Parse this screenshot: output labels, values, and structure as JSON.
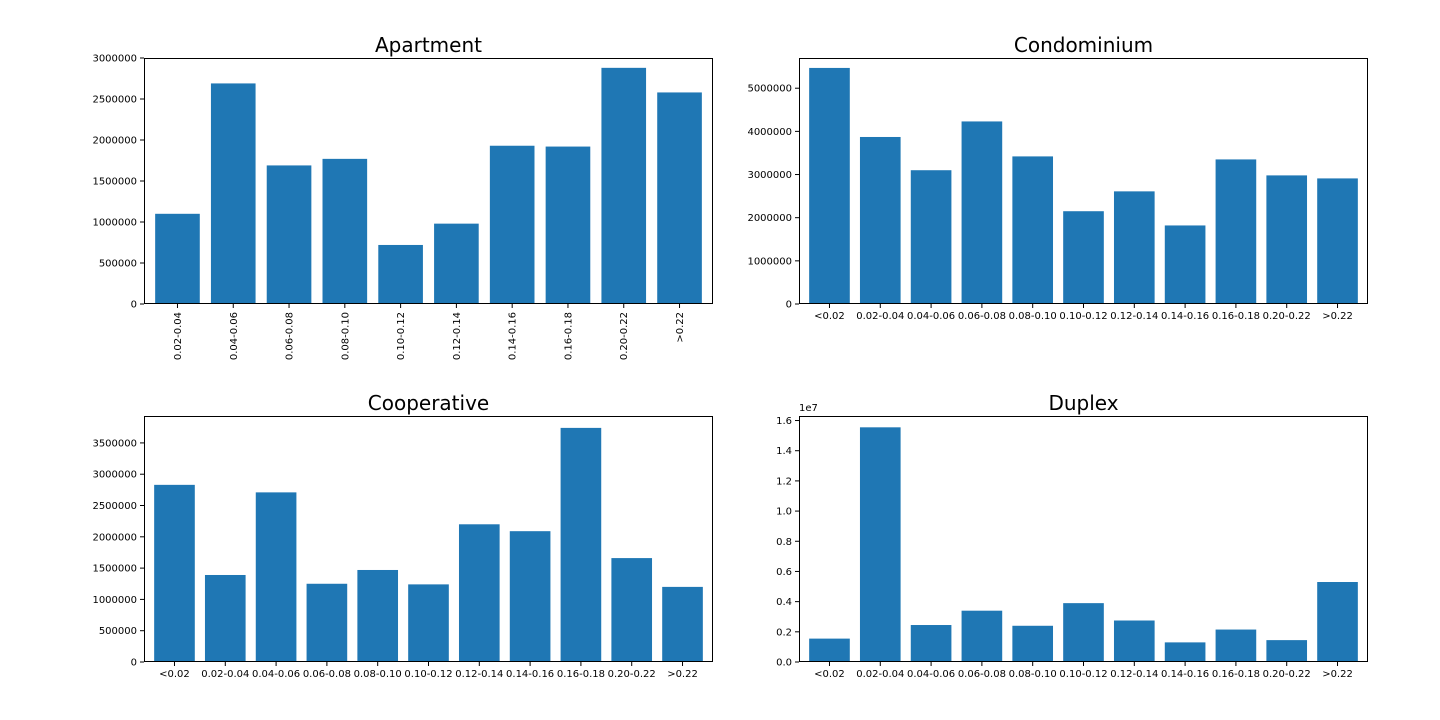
{
  "colors": {
    "bar": "#1f77b4",
    "axis": "#000000",
    "background": "#ffffff"
  },
  "chart_data": [
    {
      "type": "bar",
      "title": "Apartment",
      "categories": [
        "0.02-0.04",
        "0.04-0.06",
        "0.06-0.08",
        "0.08-0.10",
        "0.10-0.12",
        "0.12-0.14",
        "0.14-0.16",
        "0.16-0.18",
        "0.20-0.22",
        ">0.22"
      ],
      "values": [
        1100000,
        2690000,
        1690000,
        1770000,
        720000,
        980000,
        1930000,
        1920000,
        2880000,
        2580000
      ],
      "ylim": [
        0,
        3000000
      ],
      "yticks": [
        0,
        500000,
        1000000,
        1500000,
        2000000,
        2500000,
        3000000
      ],
      "ytick_labels": [
        "0",
        "500000",
        "1000000",
        "1500000",
        "2000000",
        "2500000",
        "3000000"
      ],
      "xtick_rotation": 90,
      "offset_label": ""
    },
    {
      "type": "bar",
      "title": "Condominium",
      "categories": [
        "<0.02",
        "0.02-0.04",
        "0.04-0.06",
        "0.06-0.08",
        "0.08-0.10",
        "0.10-0.12",
        "0.12-0.14",
        "0.14-0.16",
        "0.16-0.18",
        "0.20-0.22",
        ">0.22"
      ],
      "values": [
        5470000,
        3870000,
        3100000,
        4230000,
        3420000,
        2150000,
        2610000,
        1820000,
        3350000,
        2980000,
        2910000
      ],
      "ylim": [
        0,
        5700000
      ],
      "yticks": [
        0,
        1000000,
        2000000,
        3000000,
        4000000,
        5000000
      ],
      "ytick_labels": [
        "0",
        "1000000",
        "2000000",
        "3000000",
        "4000000",
        "5000000"
      ],
      "xtick_rotation": 0,
      "offset_label": ""
    },
    {
      "type": "bar",
      "title": "Cooperative",
      "categories": [
        "<0.02",
        "0.02-0.04",
        "0.04-0.06",
        "0.06-0.08",
        "0.08-0.10",
        "0.10-0.12",
        "0.12-0.14",
        "0.14-0.16",
        "0.16-0.18",
        "0.20-0.22",
        ">0.22"
      ],
      "values": [
        2830000,
        1390000,
        2710000,
        1250000,
        1470000,
        1240000,
        2200000,
        2090000,
        3740000,
        1660000,
        1200000
      ],
      "ylim": [
        0,
        3930000
      ],
      "yticks": [
        0,
        500000,
        1000000,
        1500000,
        2000000,
        2500000,
        3000000,
        3500000
      ],
      "ytick_labels": [
        "0",
        "500000",
        "1000000",
        "1500000",
        "2000000",
        "2500000",
        "3000000",
        "3500000"
      ],
      "xtick_rotation": 0,
      "offset_label": ""
    },
    {
      "type": "bar",
      "title": "Duplex",
      "categories": [
        "<0.02",
        "0.02-0.04",
        "0.04-0.06",
        "0.06-0.08",
        "0.08-0.10",
        "0.10-0.12",
        "0.12-0.14",
        "0.14-0.16",
        "0.16-0.18",
        "0.20-0.22",
        ">0.22"
      ],
      "values": [
        0.155,
        1.555,
        0.245,
        0.34,
        0.24,
        0.39,
        0.275,
        0.13,
        0.215,
        0.145,
        0.53
      ],
      "ylim": [
        0,
        1.63
      ],
      "yticks": [
        0,
        0.2,
        0.4,
        0.6,
        0.8,
        1.0,
        1.2,
        1.4,
        1.6
      ],
      "ytick_labels": [
        "0.0",
        "0.2",
        "0.4",
        "0.6",
        "0.8",
        "1.0",
        "1.2",
        "1.4",
        "1.6"
      ],
      "xtick_rotation": 0,
      "offset_label": "1e7"
    }
  ]
}
